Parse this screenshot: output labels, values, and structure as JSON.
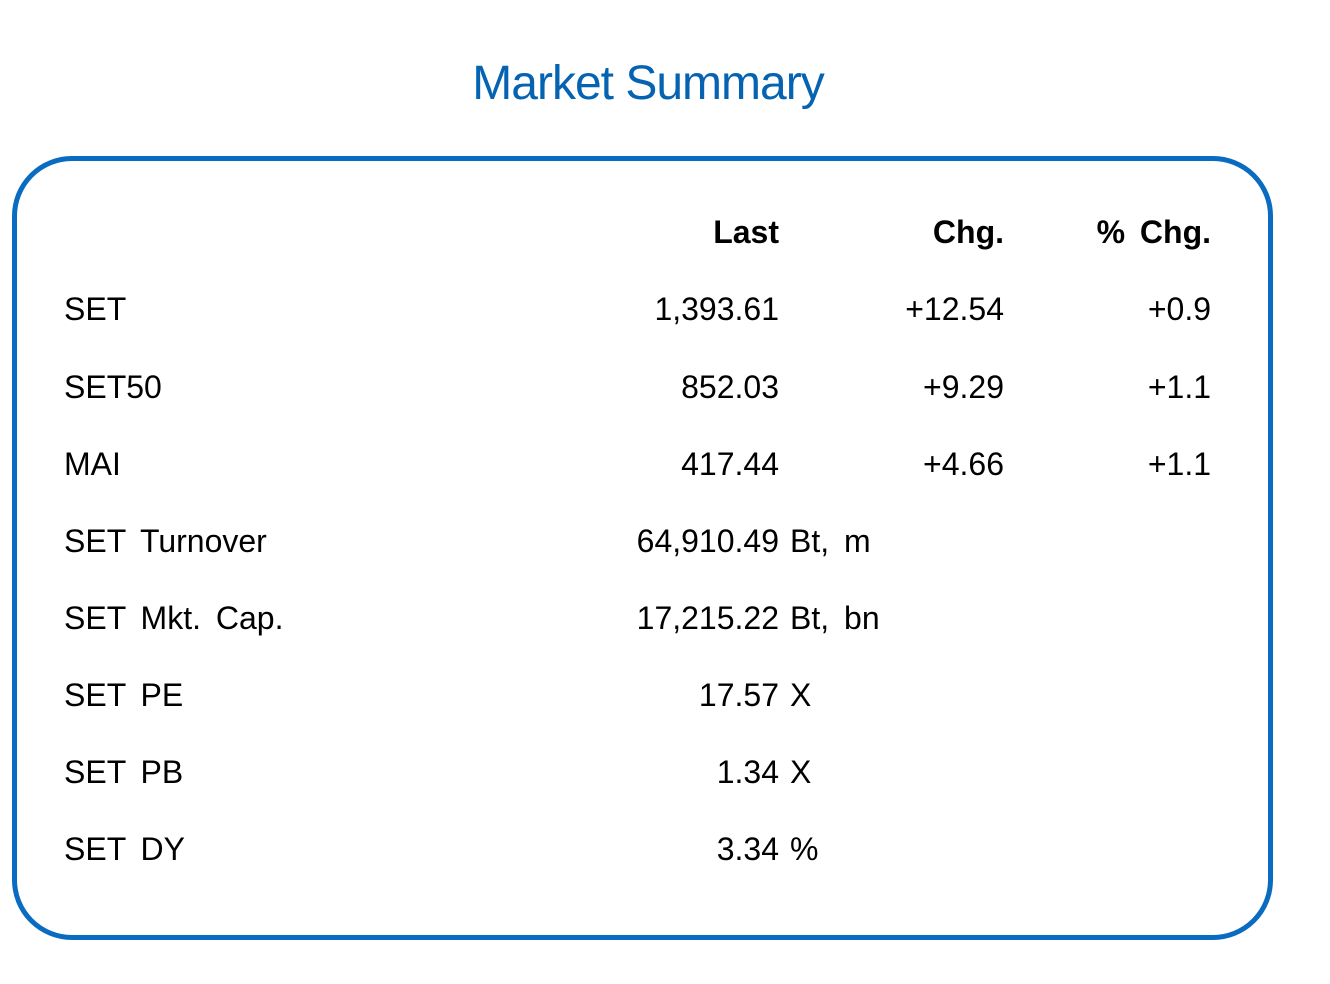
{
  "title": "Market Summary",
  "header": {
    "last": "Last",
    "chg": "Chg.",
    "pct_chg": "% Chg."
  },
  "rows": [
    {
      "label": "SET",
      "last": "1,393.61",
      "unit": "",
      "chg": "+12.54",
      "pct_chg": "+0.9"
    },
    {
      "label": "SET50",
      "last": "852.03",
      "unit": "",
      "chg": "+9.29",
      "pct_chg": "+1.1"
    },
    {
      "label": "MAI",
      "last": "417.44",
      "unit": "",
      "chg": "+4.66",
      "pct_chg": "+1.1"
    },
    {
      "label": "SET Turnover",
      "last": "64,910.49",
      "unit": "Bt, m",
      "chg": "",
      "pct_chg": ""
    },
    {
      "label": "SET Mkt. Cap.",
      "last": "17,215.22",
      "unit": "Bt, bn",
      "chg": "",
      "pct_chg": ""
    },
    {
      "label": "SET PE",
      "last": "17.57",
      "unit": "X",
      "chg": "",
      "pct_chg": ""
    },
    {
      "label": "SET PB",
      "last": "1.34",
      "unit": "X",
      "chg": "",
      "pct_chg": ""
    },
    {
      "label": "SET DY",
      "last": "3.34",
      "unit": "%",
      "chg": "",
      "pct_chg": ""
    }
  ],
  "colors": {
    "title": "#0563b1",
    "border": "#0a6cc1",
    "text": "#000000"
  }
}
